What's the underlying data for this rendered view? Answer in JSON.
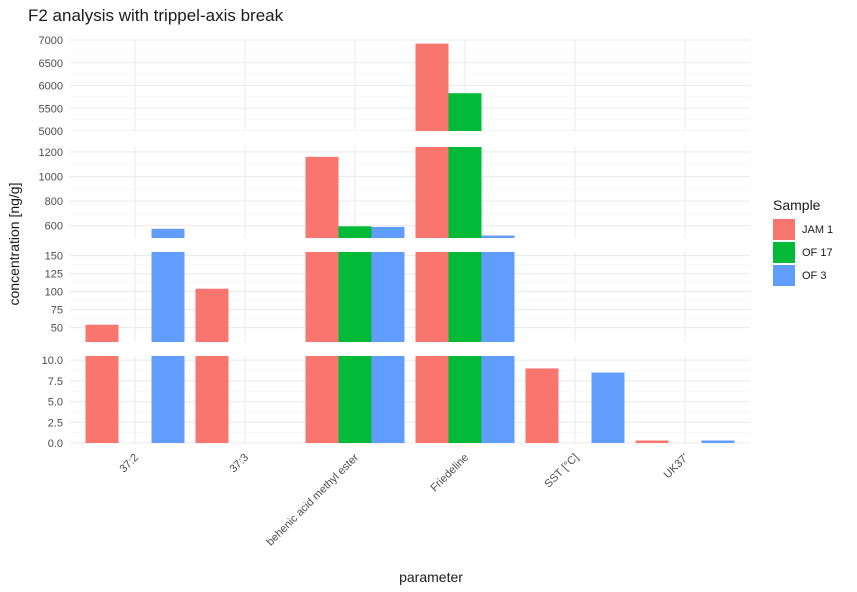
{
  "chart_data": {
    "type": "bar",
    "title": "F2 analysis with trippel-axis break",
    "xlabel": "parameter",
    "ylabel": "concentration [ng/g]",
    "categories": [
      "37:2",
      "37:3",
      "behenic acid methyl ester",
      "Friedeline",
      "SST [°C]",
      "UK37'"
    ],
    "legend_title": "Sample",
    "legend_position": "right",
    "grid": true,
    "series": [
      {
        "name": "JAM 1",
        "color": "#F8766D",
        "values": [
          54,
          104,
          1160,
          6920,
          9.0,
          0.3
        ]
      },
      {
        "name": "OF 17",
        "color": "#00BA38",
        "values": [
          0,
          0,
          595,
          5830,
          0,
          0
        ]
      },
      {
        "name": "OF 3",
        "color": "#619CFF",
        "values": [
          575,
          0,
          590,
          520,
          8.5,
          0.3
        ]
      }
    ],
    "panels": [
      {
        "range": [
          5000,
          7000
        ],
        "ticks": [
          "5000",
          "5500",
          "6000",
          "6500",
          "7000"
        ]
      },
      {
        "range": [
          500,
          1240
        ],
        "ticks": [
          "600",
          "800",
          "1000",
          "1200"
        ]
      },
      {
        "range": [
          30,
          155
        ],
        "ticks": [
          "50",
          "75",
          "100",
          "125",
          "150"
        ]
      },
      {
        "range": [
          0,
          10.5
        ],
        "ticks": [
          "0.0",
          "2.5",
          "5.0",
          "7.5",
          "10.0"
        ]
      }
    ]
  }
}
